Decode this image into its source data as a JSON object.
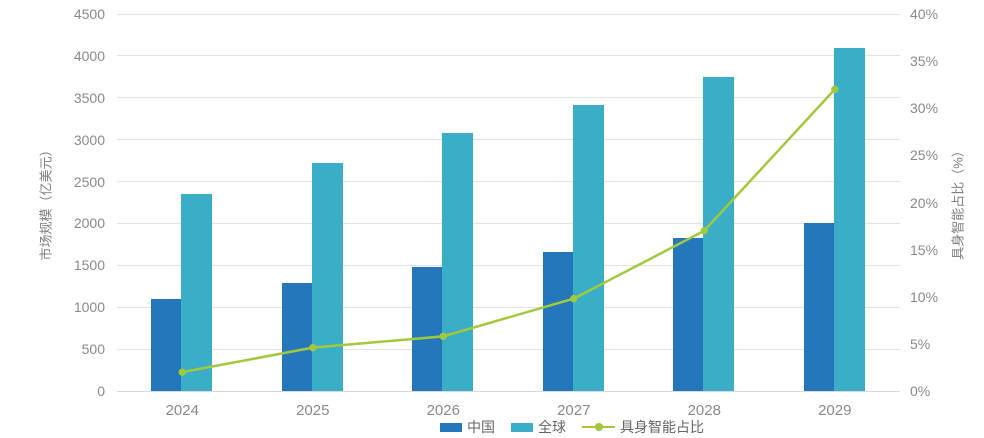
{
  "chart_data": {
    "type": "bar",
    "subtype": "grouped bars with overlaid line, dual y-axes",
    "categories": [
      "2024",
      "2025",
      "2026",
      "2027",
      "2028",
      "2029"
    ],
    "series": [
      {
        "name": "中国",
        "type": "bar",
        "axis": "left",
        "color": "#2577BC",
        "values": [
          1100,
          1290,
          1480,
          1660,
          1830,
          2010
        ]
      },
      {
        "name": "全球",
        "type": "bar",
        "axis": "left",
        "color": "#3AAEC6",
        "values": [
          2350,
          2720,
          3080,
          3410,
          3750,
          4090
        ]
      },
      {
        "name": "具身智能占比",
        "type": "line",
        "axis": "right",
        "color": "#A2C93C",
        "unit": "%",
        "values": [
          2,
          4.6,
          5.8,
          9.8,
          17,
          32
        ]
      }
    ],
    "left_axis": {
      "label": "市场规模（亿美元）",
      "min": 0,
      "max": 4500,
      "step": 500,
      "ticks": [
        4500,
        4000,
        3500,
        3000,
        2500,
        2000,
        1500,
        1000,
        500,
        0
      ]
    },
    "right_axis": {
      "label": "具身智能占比（%）",
      "min": 0,
      "max": 40,
      "step": 5,
      "ticks": [
        "40%",
        "35%",
        "30%",
        "25%",
        "20%",
        "15%",
        "10%",
        "5%",
        "0%"
      ]
    },
    "grid": true,
    "legend_position": "bottom",
    "colors": {
      "grid": "#E3E3E3",
      "baseline": "#D9D9D9",
      "tick_text": "#8A8A8A",
      "axis_title_text": "#7F7F7F",
      "legend_text": "#666666",
      "background": "#FFFFFF"
    }
  }
}
